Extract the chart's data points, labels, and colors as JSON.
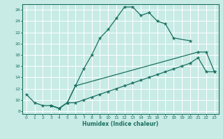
{
  "xlabel": "Humidex (Indice chaleur)",
  "xlim": [
    -0.5,
    23.5
  ],
  "ylim": [
    7.5,
    27.0
  ],
  "xticks": [
    0,
    1,
    2,
    3,
    4,
    5,
    6,
    7,
    8,
    9,
    10,
    11,
    12,
    13,
    14,
    15,
    16,
    17,
    18,
    19,
    20,
    21,
    22,
    23
  ],
  "yticks": [
    8,
    10,
    12,
    14,
    16,
    18,
    20,
    22,
    24,
    26
  ],
  "bg_color": "#c8ebe6",
  "line_color": "#1a7060",
  "grid_color": "#ffffff",
  "line1": {
    "x": [
      0,
      1,
      2,
      3,
      4,
      5,
      6,
      7,
      8,
      9,
      10,
      11,
      12,
      13,
      14,
      15,
      16,
      17,
      18,
      20
    ],
    "y": [
      11,
      9.5,
      9,
      9,
      8.5,
      9.5,
      12.5,
      15.5,
      18,
      21,
      22.5,
      24.5,
      26.5,
      26.5,
      25,
      25.5,
      24,
      23.5,
      21,
      20.5
    ]
  },
  "line2": {
    "x": [
      3,
      4,
      5,
      6,
      21,
      22,
      23
    ],
    "y": [
      9,
      8.5,
      9.5,
      12.5,
      18.5,
      18.5,
      15
    ]
  },
  "line3": {
    "x": [
      3,
      4,
      5,
      6,
      7,
      8,
      9,
      10,
      11,
      12,
      13,
      14,
      15,
      16,
      17,
      18,
      19,
      20,
      21,
      22,
      23
    ],
    "y": [
      9,
      8.5,
      9.5,
      9.5,
      10,
      10.5,
      11,
      11.5,
      12,
      12.5,
      13,
      13.5,
      14,
      14.5,
      15,
      15.5,
      16,
      16.5,
      17.5,
      15,
      15
    ]
  }
}
